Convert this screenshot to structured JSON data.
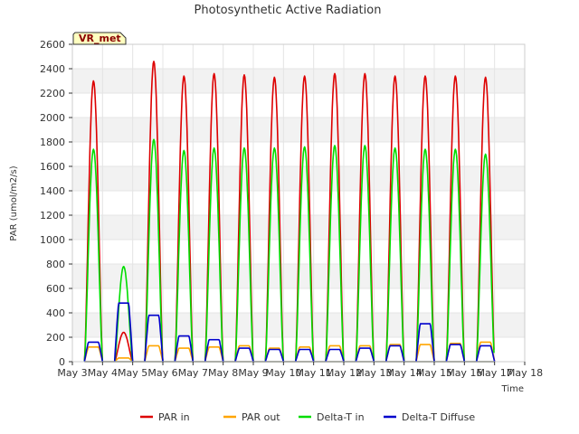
{
  "chart_data": {
    "type": "line",
    "title": "Photosynthetic Active Radiation",
    "xlabel": "Time",
    "ylabel": "PAR (umol/m2/s)",
    "station_tag": "VR_met",
    "xlim": [
      3,
      18
    ],
    "ylim": [
      0,
      2600
    ],
    "yticks": [
      0,
      200,
      400,
      600,
      800,
      1000,
      1200,
      1400,
      1600,
      1800,
      2000,
      2200,
      2400,
      2600
    ],
    "xticks": [
      {
        "value": 3,
        "label": "May 3"
      },
      {
        "value": 4,
        "label": "May 4"
      },
      {
        "value": 5,
        "label": "May 5"
      },
      {
        "value": 6,
        "label": "May 6"
      },
      {
        "value": 7,
        "label": "May 7"
      },
      {
        "value": 8,
        "label": "May 8"
      },
      {
        "value": 9,
        "label": "May 9"
      },
      {
        "value": 10,
        "label": "May 10"
      },
      {
        "value": 11,
        "label": "May 11"
      },
      {
        "value": 12,
        "label": "May 12"
      },
      {
        "value": 13,
        "label": "May 13"
      },
      {
        "value": 14,
        "label": "May 14"
      },
      {
        "value": 15,
        "label": "May 15"
      },
      {
        "value": 16,
        "label": "May 16"
      },
      {
        "value": 17,
        "label": "May 17"
      },
      {
        "value": 18,
        "label": "May 18"
      }
    ],
    "legend": [
      "PAR in",
      "PAR out",
      "Delta-T in",
      "Delta-T Diffuse"
    ],
    "days": [
      3.7,
      4.7,
      5.7,
      6.7,
      7.7,
      8.7,
      9.7,
      10.7,
      11.7,
      12.7,
      13.7,
      14.7,
      15.7,
      16.7
    ],
    "series": [
      {
        "name": "PAR in",
        "color": "#dd0000",
        "peaks": [
          2300,
          240,
          2460,
          2340,
          2360,
          2350,
          2330,
          2340,
          2360,
          2360,
          2340,
          2340,
          2340,
          2330
        ]
      },
      {
        "name": "PAR out",
        "color": "#ffa500",
        "peaks": [
          120,
          30,
          130,
          110,
          120,
          130,
          110,
          120,
          130,
          130,
          140,
          140,
          150,
          160
        ]
      },
      {
        "name": "Delta-T in",
        "color": "#00dd00",
        "peaks": [
          1740,
          780,
          1820,
          1730,
          1750,
          1750,
          1750,
          1760,
          1770,
          1770,
          1750,
          1740,
          1740,
          1700
        ]
      },
      {
        "name": "Delta-T Diffuse",
        "color": "#0000cc",
        "peaks": [
          160,
          480,
          380,
          210,
          180,
          110,
          100,
          100,
          100,
          110,
          130,
          310,
          140,
          130
        ]
      }
    ]
  }
}
